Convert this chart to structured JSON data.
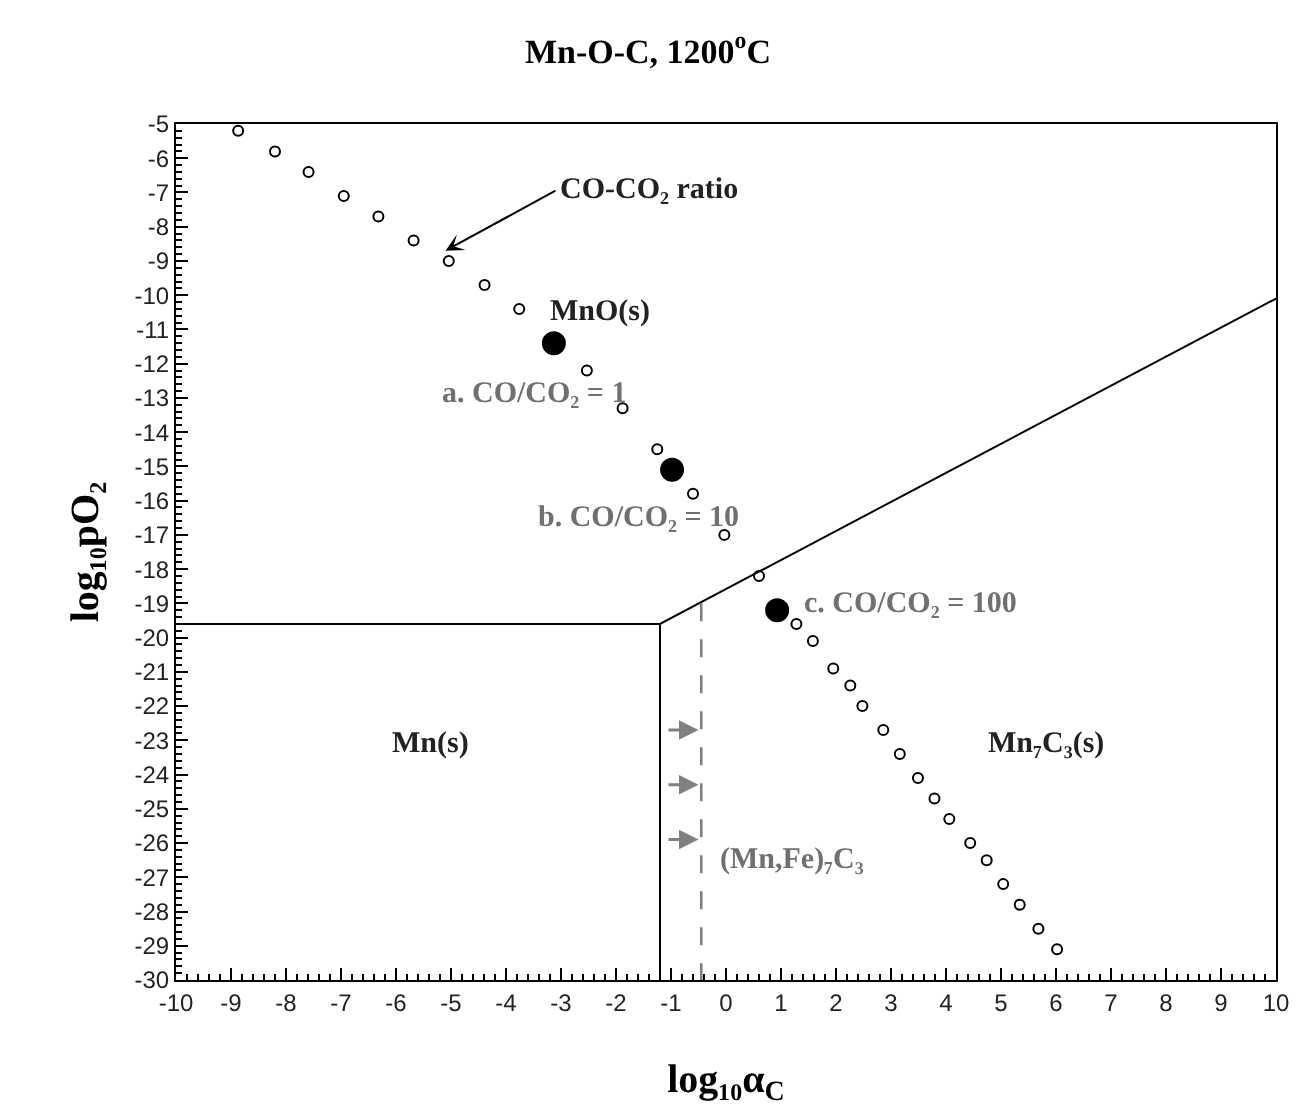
{
  "chart_data": {
    "type": "scatter",
    "title": "Mn-O-C, 1200$^{o}$C",
    "xlabel": "log₁₀α$_{C}$",
    "ylabel": "log₁₀pO₂",
    "xlim": [
      -10,
      10
    ],
    "xticks": [
      -10,
      -9,
      -8,
      -7,
      -6,
      -5,
      -4,
      -3,
      -2,
      -1,
      0,
      1,
      2,
      3,
      4,
      5,
      6,
      7,
      8,
      9,
      10
    ],
    "ylim": [
      -30,
      -5
    ],
    "yticks": [
      -5,
      -6,
      -7,
      -8,
      -9,
      -10,
      -11,
      -12,
      -13,
      -14,
      -15,
      -16,
      -17,
      -18,
      -19,
      -20,
      -21,
      -22,
      -23,
      -24,
      -25,
      -26,
      -27,
      -28,
      -29,
      -30
    ],
    "grid": false,
    "series": [
      {
        "marker": "circle",
        "color": "#000000",
        "x": [
          -8.87,
          -8.2,
          -7.59,
          -6.95,
          -6.32,
          -5.68,
          -5.04,
          -4.39,
          -3.76,
          -2.53,
          -1.88,
          -1.25,
          -0.6,
          -0.03,
          0.6,
          1.28,
          1.58,
          1.95,
          2.26,
          2.48,
          2.86,
          3.16,
          3.49,
          3.79,
          4.06,
          4.44,
          4.74,
          5.04,
          5.34,
          5.68,
          6.02
        ],
        "values": [
          -5.2,
          -5.8,
          -6.4,
          -7.1,
          -7.7,
          -8.4,
          -9,
          -9.7,
          -10.4,
          -12.2,
          -13.3,
          -14.5,
          -15.8,
          -17,
          -18.2,
          -19.6,
          -20.1,
          -20.9,
          -21.4,
          -22,
          -22.7,
          -23.4,
          -24.1,
          -24.7,
          -25.3,
          -26,
          -26.5,
          -27.2,
          -27.8,
          -28.5,
          -29.1
        ]
      },
      {
        "marker": "circle",
        "color": "#000000",
        "x": [
          -3.13,
          -0.98,
          0.93
        ],
        "values": [
          -11.4,
          -15.1,
          -19.2
        ]
      },
      {
        "type": "line",
        "marker": "none",
        "line_style": "solid",
        "color": "#000000",
        "x": [
          -10,
          -1.2,
          10
        ],
        "values": [
          -19.6,
          -19.6,
          -10.1
        ]
      },
      {
        "type": "line",
        "marker": "none",
        "line_style": "solid",
        "color": "#000000",
        "x": [
          -1.2,
          -1.2
        ],
        "values": [
          -19.6,
          -30
        ]
      },
      {
        "type": "line",
        "marker": "none",
        "line_style": "dashed",
        "color": "#808080",
        "x": [
          -0.45,
          -0.45
        ],
        "values": [
          -19,
          -30
        ]
      }
    ],
    "annotations": [
      {
        "text": "CO-CO₂ ratio",
        "x": -5.1,
        "y": -8.7
      },
      "MnO(s)",
      "a. CO/CO₂ = 1",
      "b. CO/CO₂ = 10",
      "c. CO/CO₂ = 100",
      "Mn(s)",
      "Mn₇C₃(s)",
      "(Mn,Fe)₇C₃"
    ]
  }
}
